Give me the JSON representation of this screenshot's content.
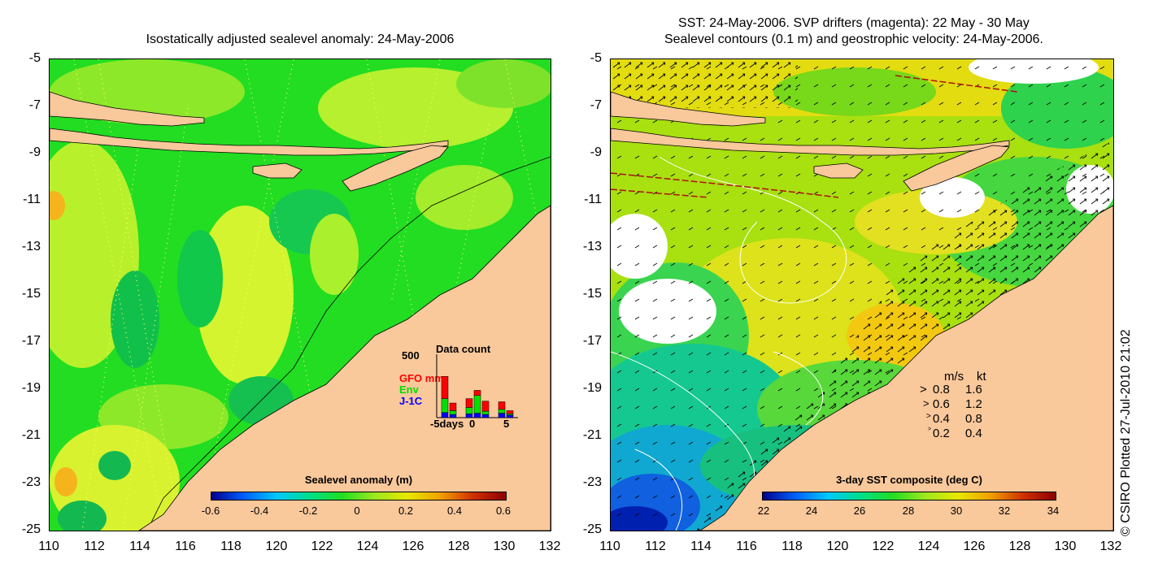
{
  "left_panel": {
    "title": "Isostatically adjusted sealevel anomaly: 24-May-2006",
    "colorbar": {
      "title": "Sealevel anomaly (m)",
      "ticks": [
        "-0.6",
        "-0.4",
        "-0.2",
        "0",
        "0.2",
        "0.4",
        "0.6"
      ]
    },
    "inset": {
      "title": "Data count",
      "ymax": "500",
      "series_labels": [
        "GFO mm",
        "Env",
        "J-1C"
      ],
      "series_colors": [
        "#ff0000",
        "#00e000",
        "#0000ff"
      ],
      "xticks": [
        "-5days",
        "0",
        "5"
      ],
      "bars": [
        {
          "d": -4,
          "gfo": 0.35,
          "env": 0.22,
          "j1c": 0.08
        },
        {
          "d": -3,
          "gfo": 0.12,
          "env": 0.06,
          "j1c": 0.05
        },
        {
          "d": -1,
          "gfo": 0.14,
          "env": 0.1,
          "j1c": 0.06
        },
        {
          "d": 0,
          "gfo": 0.08,
          "env": 0.28,
          "j1c": 0.07
        },
        {
          "d": 1,
          "gfo": 0.16,
          "env": 0.05,
          "j1c": 0.05
        },
        {
          "d": 3,
          "gfo": 0.12,
          "env": 0.06,
          "j1c": 0.07
        },
        {
          "d": 4,
          "gfo": 0.05,
          "env": 0.02,
          "j1c": 0.04
        }
      ]
    }
  },
  "right_panel": {
    "title_line1": "SST: 24-May-2006. SVP drifters (magenta): 22 May - 30 May",
    "title_line2": "Sealevel contours (0.1 m) and geostrophic velocity: 24-May-2006.",
    "colorbar": {
      "title": "3-day SST composite (deg C)",
      "ticks": [
        "22",
        "24",
        "26",
        "28",
        "30",
        "32",
        "34"
      ]
    },
    "legend": {
      "header_ms": "m/s",
      "header_kt": "kt",
      "rows": [
        {
          "ms": "0.8",
          "kt": "1.6"
        },
        {
          "ms": "0.6",
          "kt": "1.2"
        },
        {
          "ms": "0.4",
          "kt": "0.8"
        },
        {
          "ms": "0.2",
          "kt": "0.4"
        }
      ]
    }
  },
  "y_ticks": [
    "-5",
    "-7",
    "-9",
    "-11",
    "-13",
    "-15",
    "-17",
    "-19",
    "-21",
    "-23",
    "-25"
  ],
  "x_ticks": [
    "110",
    "112",
    "114",
    "116",
    "118",
    "120",
    "122",
    "124",
    "126",
    "128",
    "130",
    "132"
  ],
  "credit": "© CSIRO Plotted 27-Jul-2010 21:02",
  "colors": {
    "land": "#f9c89b",
    "sla_base": "#22dd22",
    "sst_base": "#a8e010"
  }
}
